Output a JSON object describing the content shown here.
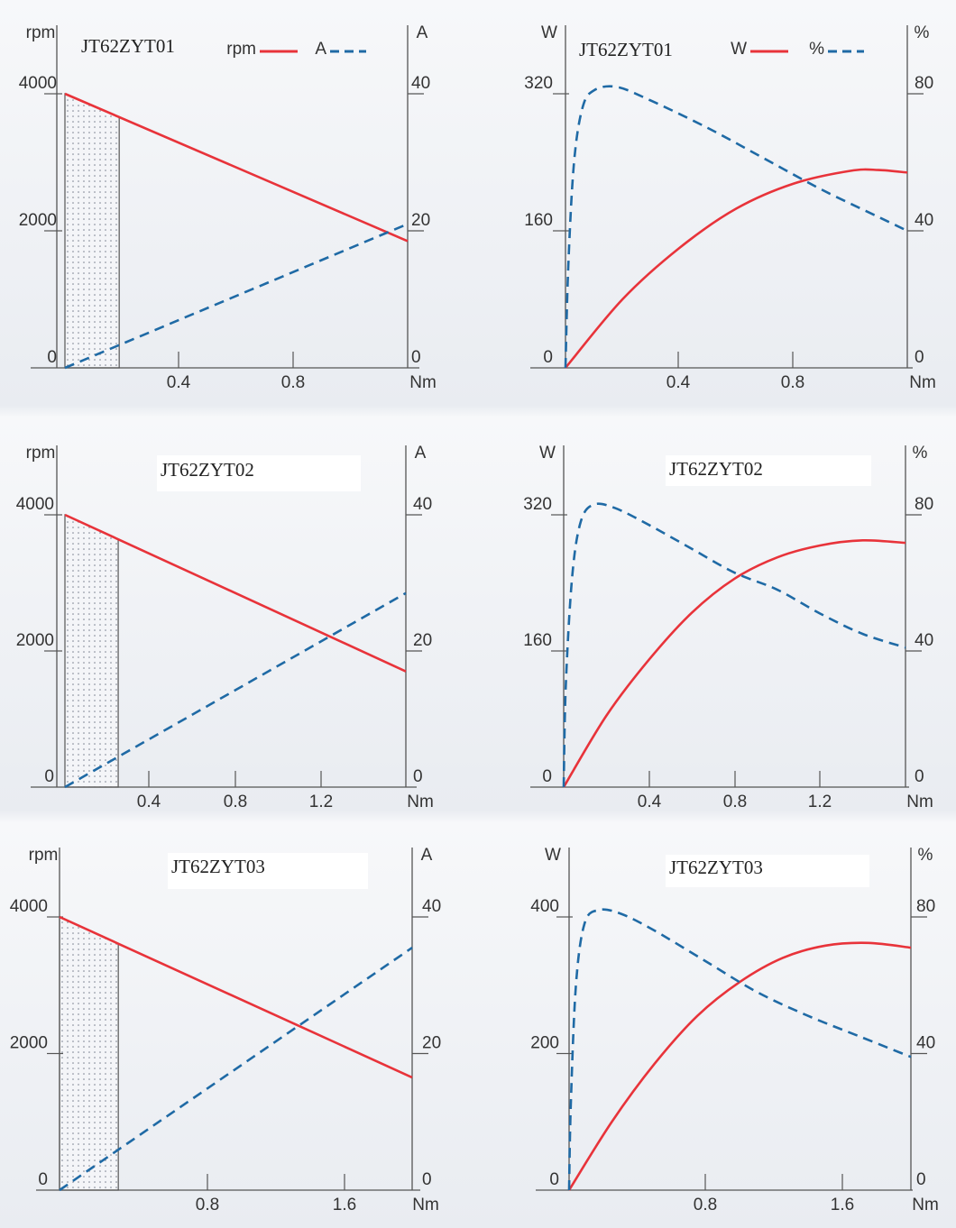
{
  "colors": {
    "primary_series": "#e8333a",
    "secondary_series": "#1f6aa5",
    "axis": "#555555",
    "text": "#333333"
  },
  "chart_data": [
    {
      "id": "c1",
      "type": "line",
      "model": "JT62ZYT01",
      "legend": [
        {
          "label": "rpm",
          "style": "solid"
        },
        {
          "label": "A",
          "style": "dashed"
        }
      ],
      "x_label": "Nm",
      "left_unit": "rpm",
      "right_unit": "A",
      "x_ticks": [
        "0.4",
        "0.8"
      ],
      "left_ticks": [
        "0",
        "2000",
        "4000"
      ],
      "right_ticks": [
        "0",
        "20",
        "40"
      ],
      "xlim": [
        0,
        1.2
      ],
      "left_lim": [
        0,
        4000
      ],
      "right_lim": [
        0,
        40
      ],
      "shaded_x": [
        0,
        0.19
      ],
      "series": [
        {
          "name": "rpm",
          "axis": "left",
          "style": "solid",
          "points": [
            [
              0,
              4000
            ],
            [
              1.2,
              1850
            ]
          ]
        },
        {
          "name": "A",
          "axis": "right",
          "style": "dashed",
          "points": [
            [
              0,
              0
            ],
            [
              1.2,
              21
            ]
          ]
        }
      ]
    },
    {
      "id": "c2",
      "type": "line",
      "model": "JT62ZYT01",
      "legend": [
        {
          "label": "W",
          "style": "solid"
        },
        {
          "label": "%",
          "style": "dashed"
        }
      ],
      "x_label": "Nm",
      "left_unit": "W",
      "right_unit": "%",
      "x_ticks": [
        "0.4",
        "0.8"
      ],
      "left_ticks": [
        "0",
        "160",
        "320"
      ],
      "right_ticks": [
        "0",
        "40",
        "80"
      ],
      "xlim": [
        0,
        1.2
      ],
      "left_lim": [
        0,
        320
      ],
      "right_lim": [
        0,
        80
      ],
      "series": [
        {
          "name": "W",
          "axis": "left",
          "style": "solid",
          "points": [
            [
              0,
              0
            ],
            [
              0.2,
              80
            ],
            [
              0.4,
              140
            ],
            [
              0.6,
              186
            ],
            [
              0.8,
              215
            ],
            [
              1.0,
              230
            ],
            [
              1.1,
              231
            ],
            [
              1.2,
              228
            ]
          ]
        },
        {
          "name": "%",
          "axis": "right",
          "style": "dashed",
          "points": [
            [
              0,
              0
            ],
            [
              0.01,
              30
            ],
            [
              0.03,
              60
            ],
            [
              0.06,
              76
            ],
            [
              0.1,
              81
            ],
            [
              0.18,
              82
            ],
            [
              0.3,
              78
            ],
            [
              0.5,
              70
            ],
            [
              0.7,
              61
            ],
            [
              0.9,
              52
            ],
            [
              1.1,
              44
            ],
            [
              1.2,
              40
            ]
          ]
        }
      ]
    },
    {
      "id": "c3",
      "type": "line",
      "model": "JT62ZYT02",
      "legend": [],
      "x_label": "Nm",
      "left_unit": "rpm",
      "right_unit": "A",
      "x_ticks": [
        "0.4",
        "0.8",
        "1.2"
      ],
      "left_ticks": [
        "0",
        "2000",
        "4000"
      ],
      "right_ticks": [
        "0",
        "20",
        "40"
      ],
      "xlim": [
        0,
        1.6
      ],
      "left_lim": [
        0,
        4000
      ],
      "right_lim": [
        0,
        40
      ],
      "shaded_x": [
        0,
        0.25
      ],
      "series": [
        {
          "name": "rpm",
          "axis": "left",
          "style": "solid",
          "points": [
            [
              0,
              4000
            ],
            [
              1.6,
              1700
            ]
          ]
        },
        {
          "name": "A",
          "axis": "right",
          "style": "dashed",
          "points": [
            [
              0,
              0
            ],
            [
              1.6,
              28.5
            ]
          ]
        }
      ]
    },
    {
      "id": "c4",
      "type": "line",
      "model": "JT62ZYT02",
      "legend": [],
      "x_label": "Nm",
      "left_unit": "W",
      "right_unit": "%",
      "x_ticks": [
        "0.4",
        "0.8",
        "1.2"
      ],
      "left_ticks": [
        "0",
        "160",
        "320"
      ],
      "right_ticks": [
        "0",
        "40",
        "80"
      ],
      "xlim": [
        0,
        1.6
      ],
      "left_lim": [
        0,
        320
      ],
      "right_lim": [
        0,
        80
      ],
      "series": [
        {
          "name": "W",
          "axis": "left",
          "style": "solid",
          "points": [
            [
              0,
              0
            ],
            [
              0.2,
              84
            ],
            [
              0.4,
              150
            ],
            [
              0.6,
              205
            ],
            [
              0.8,
              245
            ],
            [
              1.0,
              270
            ],
            [
              1.2,
              284
            ],
            [
              1.4,
              290
            ],
            [
              1.6,
              287
            ]
          ]
        },
        {
          "name": "%",
          "axis": "right",
          "style": "dashed",
          "points": [
            [
              0,
              0
            ],
            [
              0.01,
              30
            ],
            [
              0.04,
              62
            ],
            [
              0.08,
              78
            ],
            [
              0.14,
              83
            ],
            [
              0.24,
              82
            ],
            [
              0.4,
              77
            ],
            [
              0.6,
              70
            ],
            [
              0.8,
              63
            ],
            [
              1.0,
              58
            ],
            [
              1.2,
              51
            ],
            [
              1.4,
              45
            ],
            [
              1.6,
              41
            ]
          ]
        }
      ]
    },
    {
      "id": "c5",
      "type": "line",
      "model": "JT62ZYT03",
      "legend": [],
      "x_label": "Nm",
      "left_unit": "rpm",
      "right_unit": "A",
      "x_ticks": [
        "0.8",
        "1.6"
      ],
      "left_ticks": [
        "0",
        "2000",
        "4000"
      ],
      "right_ticks": [
        "0",
        "20",
        "40"
      ],
      "xlim": [
        0,
        2.1
      ],
      "left_lim": [
        0,
        4000
      ],
      "right_lim": [
        0,
        40
      ],
      "shaded_x": [
        0,
        0.35
      ],
      "series": [
        {
          "name": "rpm",
          "axis": "left",
          "style": "solid",
          "points": [
            [
              0,
              4000
            ],
            [
              2.1,
              1650
            ]
          ]
        },
        {
          "name": "A",
          "axis": "right",
          "style": "dashed",
          "points": [
            [
              0,
              0
            ],
            [
              2.1,
              35.5
            ]
          ]
        }
      ]
    },
    {
      "id": "c6",
      "type": "line",
      "model": "JT62ZYT03",
      "legend": [],
      "x_label": "Nm",
      "left_unit": "W",
      "right_unit": "%",
      "x_ticks": [
        "0.8",
        "1.6"
      ],
      "left_ticks": [
        "0",
        "200",
        "400"
      ],
      "right_ticks": [
        "0",
        "40",
        "80"
      ],
      "xlim": [
        0,
        2.0
      ],
      "left_lim": [
        0,
        400
      ],
      "right_lim": [
        0,
        80
      ],
      "series": [
        {
          "name": "W",
          "axis": "left",
          "style": "solid",
          "points": [
            [
              0,
              0
            ],
            [
              0.25,
              100
            ],
            [
              0.5,
              185
            ],
            [
              0.75,
              255
            ],
            [
              1.0,
              305
            ],
            [
              1.25,
              340
            ],
            [
              1.5,
              358
            ],
            [
              1.75,
              362
            ],
            [
              2.0,
              355
            ]
          ]
        },
        {
          "name": "%",
          "axis": "right",
          "style": "dashed",
          "points": [
            [
              0,
              0
            ],
            [
              0.01,
              25
            ],
            [
              0.04,
              60
            ],
            [
              0.09,
              78
            ],
            [
              0.17,
              82
            ],
            [
              0.3,
              81
            ],
            [
              0.5,
              76
            ],
            [
              0.8,
              67
            ],
            [
              1.1,
              58
            ],
            [
              1.4,
              51
            ],
            [
              1.7,
              45
            ],
            [
              2.0,
              39
            ]
          ]
        }
      ]
    }
  ]
}
